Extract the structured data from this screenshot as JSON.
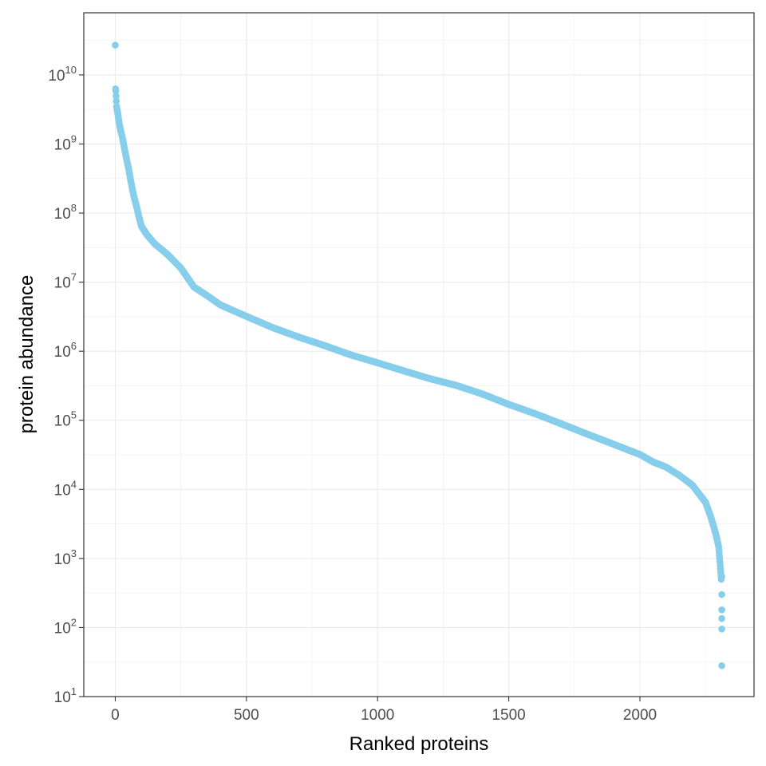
{
  "chart_data": {
    "type": "scatter",
    "title": "",
    "xlabel": "Ranked proteins",
    "ylabel": "protein abundance",
    "xlim": [
      -120,
      2435
    ],
    "ylim_log10": [
      1,
      10.9
    ],
    "y_scale": "log10",
    "grid": true,
    "legend": "none",
    "point_color": "#87CEEB",
    "x_ticks": [
      {
        "value": 0,
        "label": "0"
      },
      {
        "value": 500,
        "label": "500"
      },
      {
        "value": 1000,
        "label": "1000"
      },
      {
        "value": 1500,
        "label": "1500"
      },
      {
        "value": 2000,
        "label": "2000"
      }
    ],
    "y_ticks": [
      {
        "exp": 1,
        "base": "10",
        "sup": "1"
      },
      {
        "exp": 2,
        "base": "10",
        "sup": "2"
      },
      {
        "exp": 3,
        "base": "10",
        "sup": "3"
      },
      {
        "exp": 4,
        "base": "10",
        "sup": "4"
      },
      {
        "exp": 5,
        "base": "10",
        "sup": "5"
      },
      {
        "exp": 6,
        "base": "10",
        "sup": "6"
      },
      {
        "exp": 7,
        "base": "10",
        "sup": "7"
      },
      {
        "exp": 8,
        "base": "10",
        "sup": "8"
      },
      {
        "exp": 9,
        "base": "10",
        "sup": "9"
      },
      {
        "exp": 10,
        "base": "10",
        "sup": "10"
      }
    ],
    "n_points": 2320,
    "curve": {
      "x": [
        0,
        1,
        2,
        5,
        10,
        15,
        20,
        30,
        40,
        50,
        60,
        70,
        80,
        90,
        100,
        120,
        150,
        200,
        250,
        300,
        350,
        400,
        500,
        600,
        700,
        800,
        900,
        1000,
        1100,
        1200,
        1300,
        1400,
        1500,
        1600,
        1700,
        1800,
        1900,
        2000,
        2050,
        2100,
        2150,
        2200,
        2250,
        2270,
        2280,
        2290,
        2300,
        2305,
        2310
      ],
      "y": [
        27000000000.0,
        6300000000.0,
        5900000000.0,
        3500000000.0,
        2700000000.0,
        2000000000.0,
        1600000000.0,
        1100000000.0,
        680000000.0,
        460000000.0,
        280000000.0,
        180000000.0,
        130000000.0,
        89000000.0,
        64000000.0,
        49000000.0,
        36000000.0,
        25000000.0,
        16000000.0,
        8500000.0,
        6400000.0,
        4700000.0,
        3200000.0,
        2200000.0,
        1600000.0,
        1200000.0,
        880000.0,
        680000.0,
        520000.0,
        400000.0,
        320000.0,
        240000.0,
        170000.0,
        125000.0,
        89000.0,
        63000.0,
        45000.0,
        32000.0,
        25000.0,
        21000.0,
        16000.0,
        11500.0,
        6500.0,
        4000.0,
        3000.0,
        2200.0,
        1500.0,
        900.0,
        500.0
      ]
    },
    "tail_points": [
      {
        "x": 2312,
        "y": 550
      },
      {
        "x": 2312,
        "y": 300
      },
      {
        "x": 2312,
        "y": 180
      },
      {
        "x": 2312,
        "y": 135
      },
      {
        "x": 2312,
        "y": 95
      },
      {
        "x": 2312,
        "y": 28
      }
    ]
  }
}
